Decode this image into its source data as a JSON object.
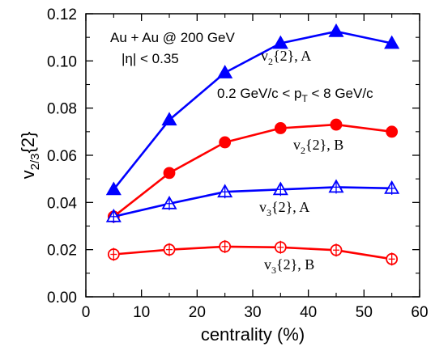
{
  "chart_data": {
    "type": "line",
    "xlabel": "centrality (%)",
    "ylabel_main": "v",
    "ylabel_sub": "2/3",
    "ylabel_tail": "{2}",
    "xlim": [
      0,
      60
    ],
    "ylim": [
      0,
      0.12
    ],
    "x_ticks": [
      "0",
      "10",
      "20",
      "30",
      "40",
      "50",
      "60"
    ],
    "y_ticks": [
      "0.00",
      "0.02",
      "0.04",
      "0.06",
      "0.08",
      "0.10",
      "0.12"
    ],
    "grid": false,
    "annotations": {
      "system": "Au + Au @ 200 GeV",
      "eta": "|η| < 0.35",
      "pt_range": "0.2 GeV/c < p",
      "pt_sub": "T",
      "pt_tail": " < 8 GeV/c"
    },
    "x": [
      5,
      15,
      25,
      35,
      45,
      55
    ],
    "series": [
      {
        "name": "v2{2}, A",
        "label_main": "v",
        "label_sub": "2",
        "label_tail": "{2}, A",
        "color": "#0000ff",
        "marker": "triangle-filled",
        "values": [
          0.0455,
          0.075,
          0.095,
          0.1075,
          0.1125,
          0.1075
        ]
      },
      {
        "name": "v2{2}, B",
        "label_main": "v",
        "label_sub": "2",
        "label_tail": "{2}, B",
        "color": "#ff0000",
        "marker": "circle-filled",
        "values": [
          0.034,
          0.0525,
          0.0655,
          0.0715,
          0.073,
          0.07
        ]
      },
      {
        "name": "v3{2}, A",
        "label_main": "v",
        "label_sub": "3",
        "label_tail": "{2}, A",
        "color": "#0000ff",
        "marker": "triangle-open",
        "values": [
          0.034,
          0.0395,
          0.0445,
          0.0455,
          0.0465,
          0.046
        ]
      },
      {
        "name": "v3{2}, B",
        "label_main": "v",
        "label_sub": "3",
        "label_tail": "{2}, B",
        "color": "#ff0000",
        "marker": "circle-open",
        "values": [
          0.018,
          0.02,
          0.0213,
          0.021,
          0.0198,
          0.016
        ]
      }
    ]
  }
}
